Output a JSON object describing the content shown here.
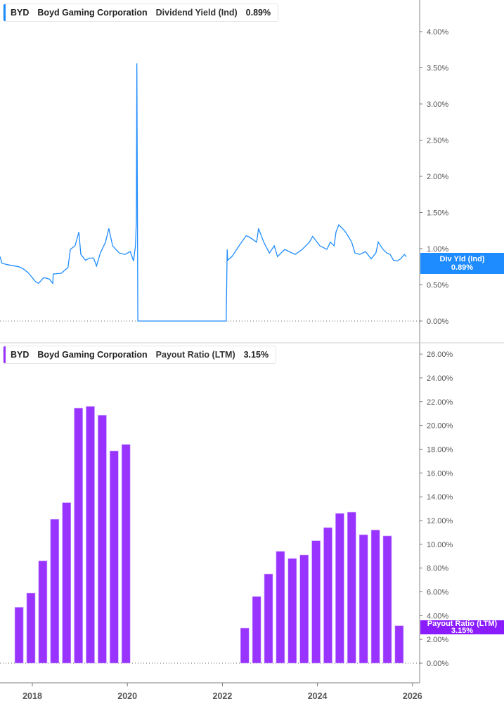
{
  "colors": {
    "line": "#1f8cff",
    "bar": "#9933ff",
    "bar_tag": "#8a1cff",
    "line_tag": "#1e8cff"
  },
  "top_legend": {
    "ticker": "BYD",
    "company": "Boyd Gaming Corporation",
    "metric": "Dividend Yield (Ind)",
    "value": "0.89%"
  },
  "bottom_legend": {
    "ticker": "BYD",
    "company": "Boyd Gaming Corporation",
    "metric": "Payout Ratio (LTM)",
    "value": "3.15%"
  },
  "top_tag": {
    "label": "Div Yld (Ind)",
    "value": "0.89%"
  },
  "bottom_tag": {
    "label": "Payout Ratio (LTM)",
    "value": "3.15%"
  },
  "chart_data": [
    {
      "type": "line",
      "series": [
        {
          "name": "Dividend Yield (Ind)",
          "x": [
            2017.32,
            2017.36,
            2017.47,
            2017.72,
            2017.81,
            2017.91,
            2018.06,
            2018.13,
            2018.24,
            2018.36,
            2018.43,
            2018.44,
            2018.61,
            2018.75,
            2018.8,
            2018.9,
            2018.98,
            2019.02,
            2019.12,
            2019.2,
            2019.29,
            2019.35,
            2019.43,
            2019.54,
            2019.61,
            2019.69,
            2019.83,
            2019.95,
            2020.06,
            2020.13,
            2020.17,
            2020.19,
            2020.2,
            2020.22,
            2022.08,
            2022.1,
            2022.11,
            2022.2,
            2022.35,
            2022.5,
            2022.57,
            2022.72,
            2022.76,
            2022.87,
            2022.99,
            2023.09,
            2023.16,
            2023.31,
            2023.53,
            2023.68,
            2023.83,
            2023.9,
            2024.05,
            2024.2,
            2024.27,
            2024.35,
            2024.39,
            2024.45,
            2024.57,
            2024.64,
            2024.72,
            2024.79,
            2024.89,
            2025.01,
            2025.13,
            2025.23,
            2025.28,
            2025.38,
            2025.46,
            2025.53,
            2025.6,
            2025.68,
            2025.75,
            2025.83,
            2025.87
          ],
          "y": [
            0.89,
            0.8,
            0.78,
            0.75,
            0.72,
            0.67,
            0.55,
            0.52,
            0.6,
            0.58,
            0.52,
            0.65,
            0.66,
            0.74,
            0.99,
            1.04,
            1.23,
            0.92,
            0.84,
            0.87,
            0.87,
            0.76,
            0.94,
            1.09,
            1.28,
            1.04,
            0.94,
            0.92,
            0.96,
            0.83,
            1.04,
            1.38,
            3.56,
            0,
            0,
            0.99,
            0.84,
            0.89,
            1.04,
            1.18,
            1.16,
            1.09,
            1.28,
            1.09,
            0.94,
            1.04,
            0.89,
            0.99,
            0.92,
            0.99,
            1.09,
            1.17,
            1.04,
            0.99,
            1.09,
            1.04,
            1.23,
            1.33,
            1.25,
            1.18,
            1.09,
            0.94,
            0.92,
            0.96,
            0.86,
            0.94,
            1.09,
            0.99,
            0.94,
            0.92,
            0.84,
            0.83,
            0.86,
            0.92,
            0.89
          ]
        }
      ],
      "xlim": [
        2017.32,
        2026.15
      ],
      "ylim": [
        0,
        4.4
      ],
      "yticks": [
        "0.00%",
        "0.50%",
        "1.00%",
        "1.50%",
        "2.00%",
        "2.50%",
        "3.00%",
        "3.50%",
        "4.00%"
      ],
      "ytick_values": [
        0,
        0.5,
        1,
        1.5,
        2,
        2.5,
        3,
        3.5,
        4
      ]
    },
    {
      "type": "bar",
      "series": [
        {
          "name": "Payout Ratio (LTM)",
          "x": [
            2017.75,
            2018.0,
            2018.25,
            2018.5,
            2018.75,
            2019.0,
            2019.25,
            2019.5,
            2019.75,
            2020.0,
            2022.5,
            2022.75,
            2023.0,
            2023.25,
            2023.5,
            2023.75,
            2024.0,
            2024.25,
            2024.5,
            2024.75,
            2025.0,
            2025.25,
            2025.5,
            2025.75
          ],
          "values": [
            4.7,
            5.9,
            8.6,
            12.1,
            13.5,
            21.45,
            21.6,
            20.85,
            17.85,
            18.4,
            2.95,
            5.6,
            7.5,
            9.4,
            8.8,
            9.1,
            10.3,
            11.4,
            12.6,
            12.7,
            10.8,
            11.2,
            10.7,
            3.15
          ]
        }
      ],
      "xlim": [
        2017.32,
        2026.15
      ],
      "ylim": [
        0,
        27.5
      ],
      "yticks": [
        "0.00%",
        "2.00%",
        "4.00%",
        "6.00%",
        "8.00%",
        "10.00%",
        "12.00%",
        "14.00%",
        "16.00%",
        "18.00%",
        "20.00%",
        "22.00%",
        "24.00%",
        "26.00%"
      ],
      "ytick_values": [
        0,
        2,
        4,
        6,
        8,
        10,
        12,
        14,
        16,
        18,
        20,
        22,
        24,
        26
      ],
      "xticks": [
        "2018",
        "2020",
        "2022",
        "2024",
        "2026"
      ],
      "xtick_values": [
        2018,
        2020,
        2022,
        2024,
        2026
      ]
    }
  ]
}
